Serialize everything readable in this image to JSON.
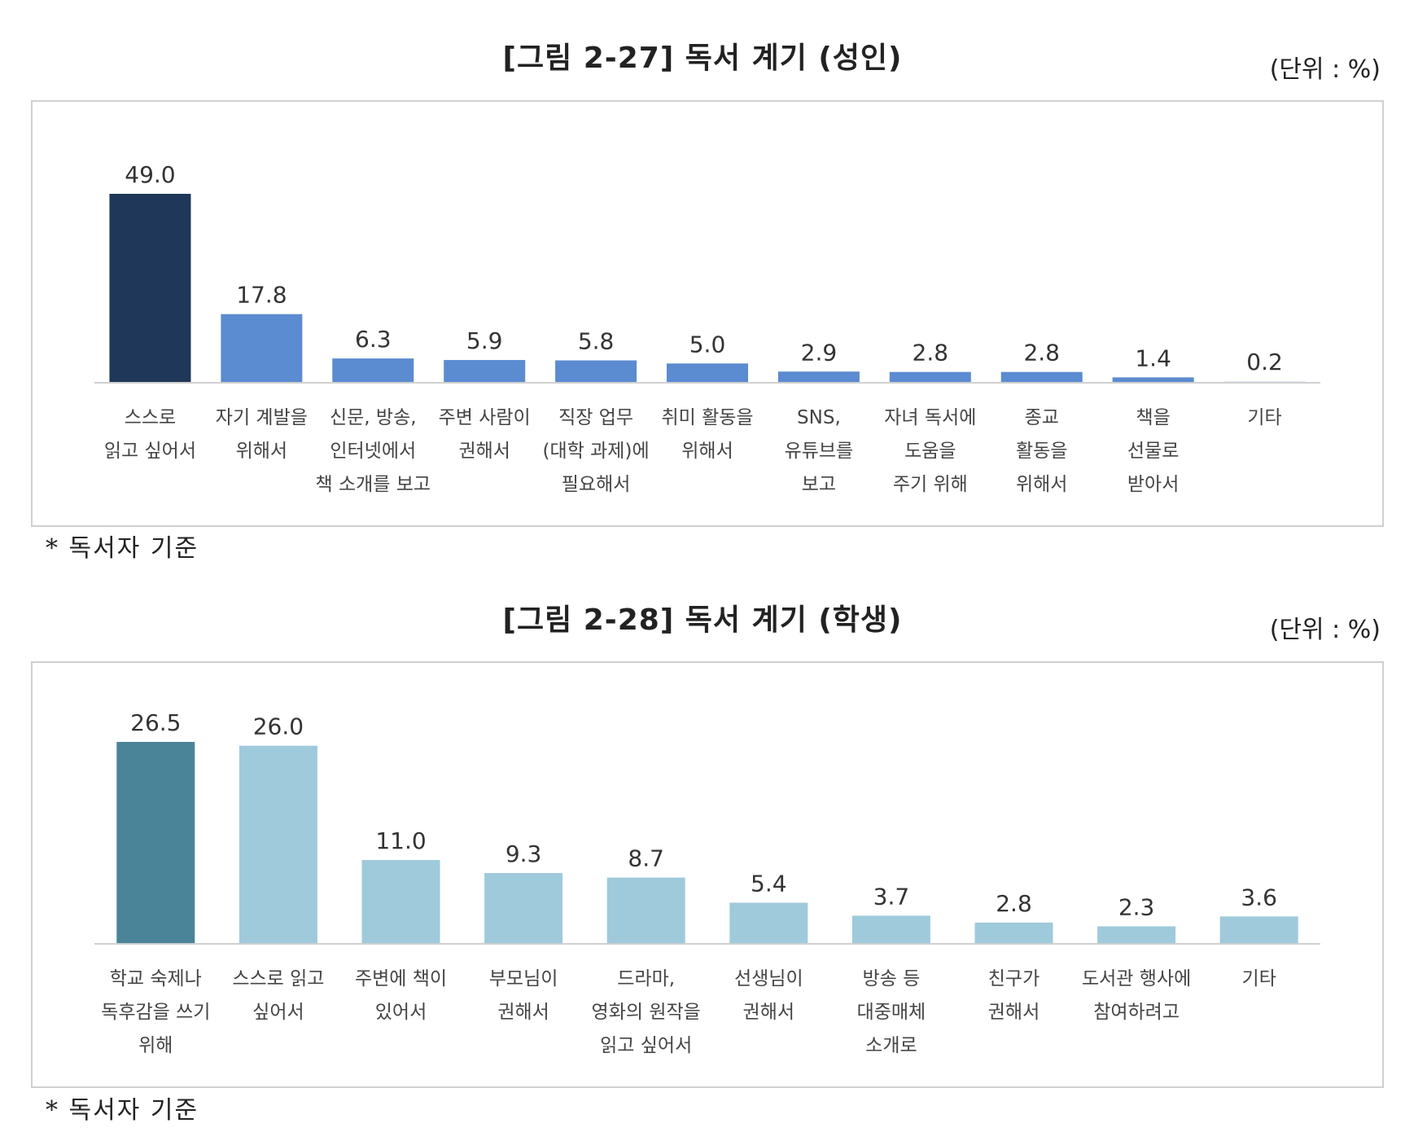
{
  "figures": [
    {
      "title": "[그림 2-27] 독서 계기 (성인)",
      "unit": "(단위 : %)",
      "note": "* 독서자 기준"
    },
    {
      "title": "[그림 2-28] 독서 계기 (학생)",
      "unit": "(단위 : %)",
      "note": "* 독서자 기준"
    }
  ],
  "chart_data": [
    {
      "type": "bar",
      "title": "[그림 2-27] 독서 계기 (성인)",
      "categories": [
        [
          "스스로",
          "읽고 싶어서"
        ],
        [
          "자기 계발을",
          "위해서"
        ],
        [
          "신문, 방송,",
          "인터넷에서",
          "책 소개를 보고"
        ],
        [
          "주변 사람이",
          "권해서"
        ],
        [
          "직장 업무",
          "(대학 과제)에",
          "필요해서"
        ],
        [
          "취미 활동을",
          "위해서"
        ],
        [
          "SNS,",
          "유튜브를",
          "보고"
        ],
        [
          "자녀 독서에",
          "도움을",
          "주기 위해"
        ],
        [
          "종교",
          "활동을",
          "위해서"
        ],
        [
          "책을",
          "선물로",
          "받아서"
        ],
        [
          "기타"
        ]
      ],
      "values": [
        49.0,
        17.8,
        6.3,
        5.9,
        5.8,
        5.0,
        2.9,
        2.8,
        2.8,
        1.4,
        0.2
      ],
      "value_labels": [
        "49.0",
        "17.8",
        "6.3",
        "5.9",
        "5.8",
        "5.0",
        "2.9",
        "2.8",
        "2.8",
        "1.4",
        "0.2"
      ],
      "colors": {
        "highlight": "#1f3758",
        "default": "#5b8bd0",
        "last": "#dde8f6"
      },
      "ylim": [
        0,
        49.0
      ],
      "grid": false,
      "legend": "none"
    },
    {
      "type": "bar",
      "title": "[그림 2-28] 독서 계기 (학생)",
      "categories": [
        [
          "학교 숙제나",
          "독후감을 쓰기",
          "위해"
        ],
        [
          "스스로 읽고",
          "싶어서"
        ],
        [
          "주변에 책이",
          "있어서"
        ],
        [
          "부모님이",
          "권해서"
        ],
        [
          "드라마,",
          "영화의 원작을",
          "읽고 싶어서"
        ],
        [
          "선생님이",
          "권해서"
        ],
        [
          "방송 등",
          "대중매체",
          "소개로"
        ],
        [
          "친구가",
          "권해서"
        ],
        [
          "도서관 행사에",
          "참여하려고"
        ],
        [
          "기타"
        ]
      ],
      "values": [
        26.5,
        26.0,
        11.0,
        9.3,
        8.7,
        5.4,
        3.7,
        2.8,
        2.3,
        3.6
      ],
      "value_labels": [
        "26.5",
        "26.0",
        "11.0",
        "9.3",
        "8.7",
        "5.4",
        "3.7",
        "2.8",
        "2.3",
        "3.6"
      ],
      "colors": {
        "highlight": "#4a8498",
        "default": "#9fcadb",
        "last": "#9fcadb"
      },
      "ylim": [
        0,
        26.5
      ],
      "grid": false,
      "legend": "none"
    }
  ]
}
